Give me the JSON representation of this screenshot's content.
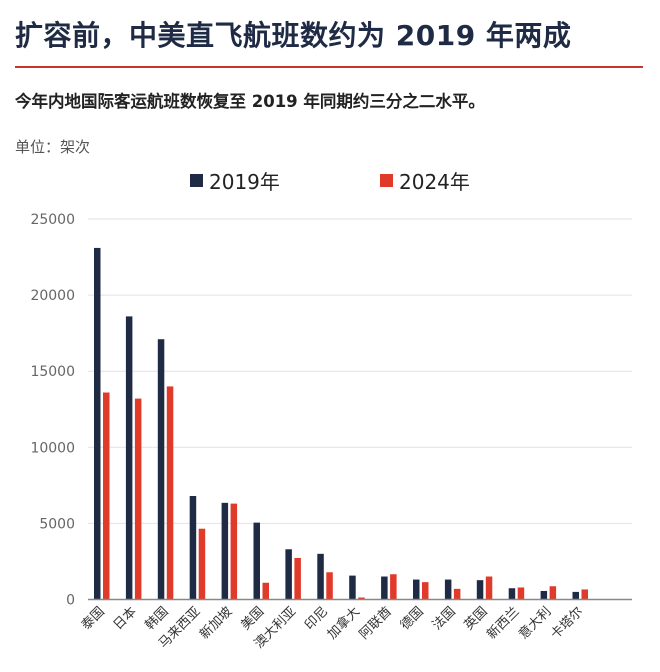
{
  "header": {
    "title": "扩容前，中美直飞航班数约为 2019 年两成",
    "subtitle": "今年内地国际客运航班数恢复至 2019 年同期约三分之二水平。",
    "unit": "单位：架次"
  },
  "colors": {
    "series_2019": "#1f2a44",
    "series_2024": "#e03a2a",
    "rule": "#c0392b",
    "grid": "#e2e2e2"
  },
  "chart_data": {
    "type": "bar",
    "title": "",
    "xlabel": "",
    "ylabel": "",
    "ylim": [
      0,
      25000
    ],
    "yticks": [
      0,
      5000,
      10000,
      15000,
      20000,
      25000
    ],
    "grid": true,
    "legend_placement": "top-center",
    "categories": [
      "泰国",
      "日本",
      "韩国",
      "马来西亚",
      "新加坡",
      "美国",
      "澳大利亚",
      "印尼",
      "加拿大",
      "阿联酋",
      "德国",
      "法国",
      "英国",
      "新西兰",
      "意大利",
      "卡塔尔"
    ],
    "series": [
      {
        "name": "2019年",
        "values": [
          23100,
          18600,
          17100,
          6800,
          6350,
          5050,
          3300,
          3000,
          1570,
          1510,
          1310,
          1310,
          1270,
          740,
          560,
          500
        ]
      },
      {
        "name": "2024年",
        "values": [
          13600,
          13200,
          14000,
          4650,
          6300,
          1100,
          2730,
          1790,
          130,
          1660,
          1140,
          700,
          1510,
          790,
          870,
          660
        ]
      }
    ]
  }
}
